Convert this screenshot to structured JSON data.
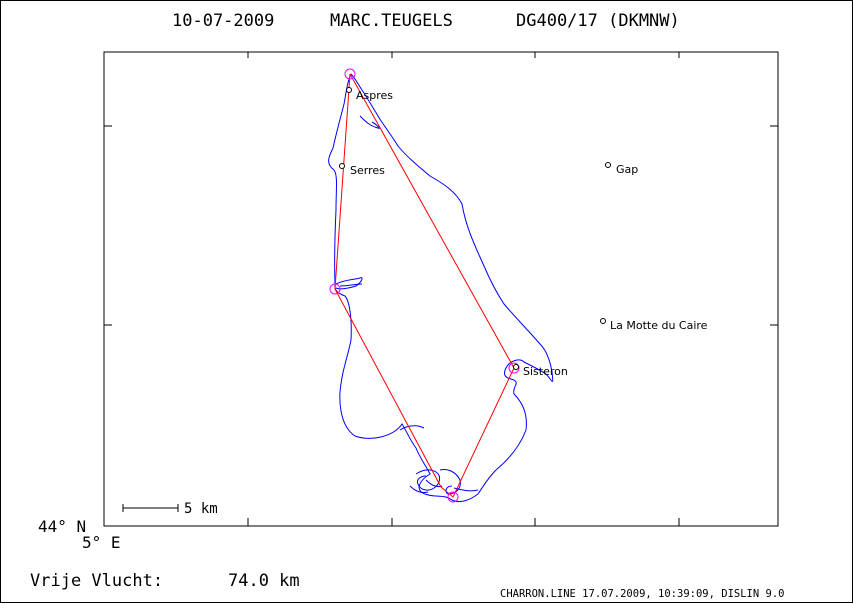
{
  "header": {
    "date": "10-07-2009",
    "pilot": "MARC.TEUGELS",
    "glider": "DG400/17 (DKMNW)"
  },
  "axes": {
    "lat_label": "44° N",
    "lon_label": "5° E"
  },
  "scale_bar": {
    "label": "5 km"
  },
  "footer": {
    "flight_label": "Vrije Vlucht:",
    "distance": "74.0 km",
    "credits": "CHARRON.LINE 17.07.2009, 10:39:09, DISLIN 9.0"
  },
  "places": [
    {
      "name": "Aspres"
    },
    {
      "name": "Serres"
    },
    {
      "name": "Gap"
    },
    {
      "name": "La Motte du Caire"
    },
    {
      "name": "Sisteron"
    }
  ],
  "colors": {
    "track": "#0000ff",
    "task_line": "#ff0000",
    "turnpoint": "#ff00ff",
    "frame": "#000000"
  }
}
